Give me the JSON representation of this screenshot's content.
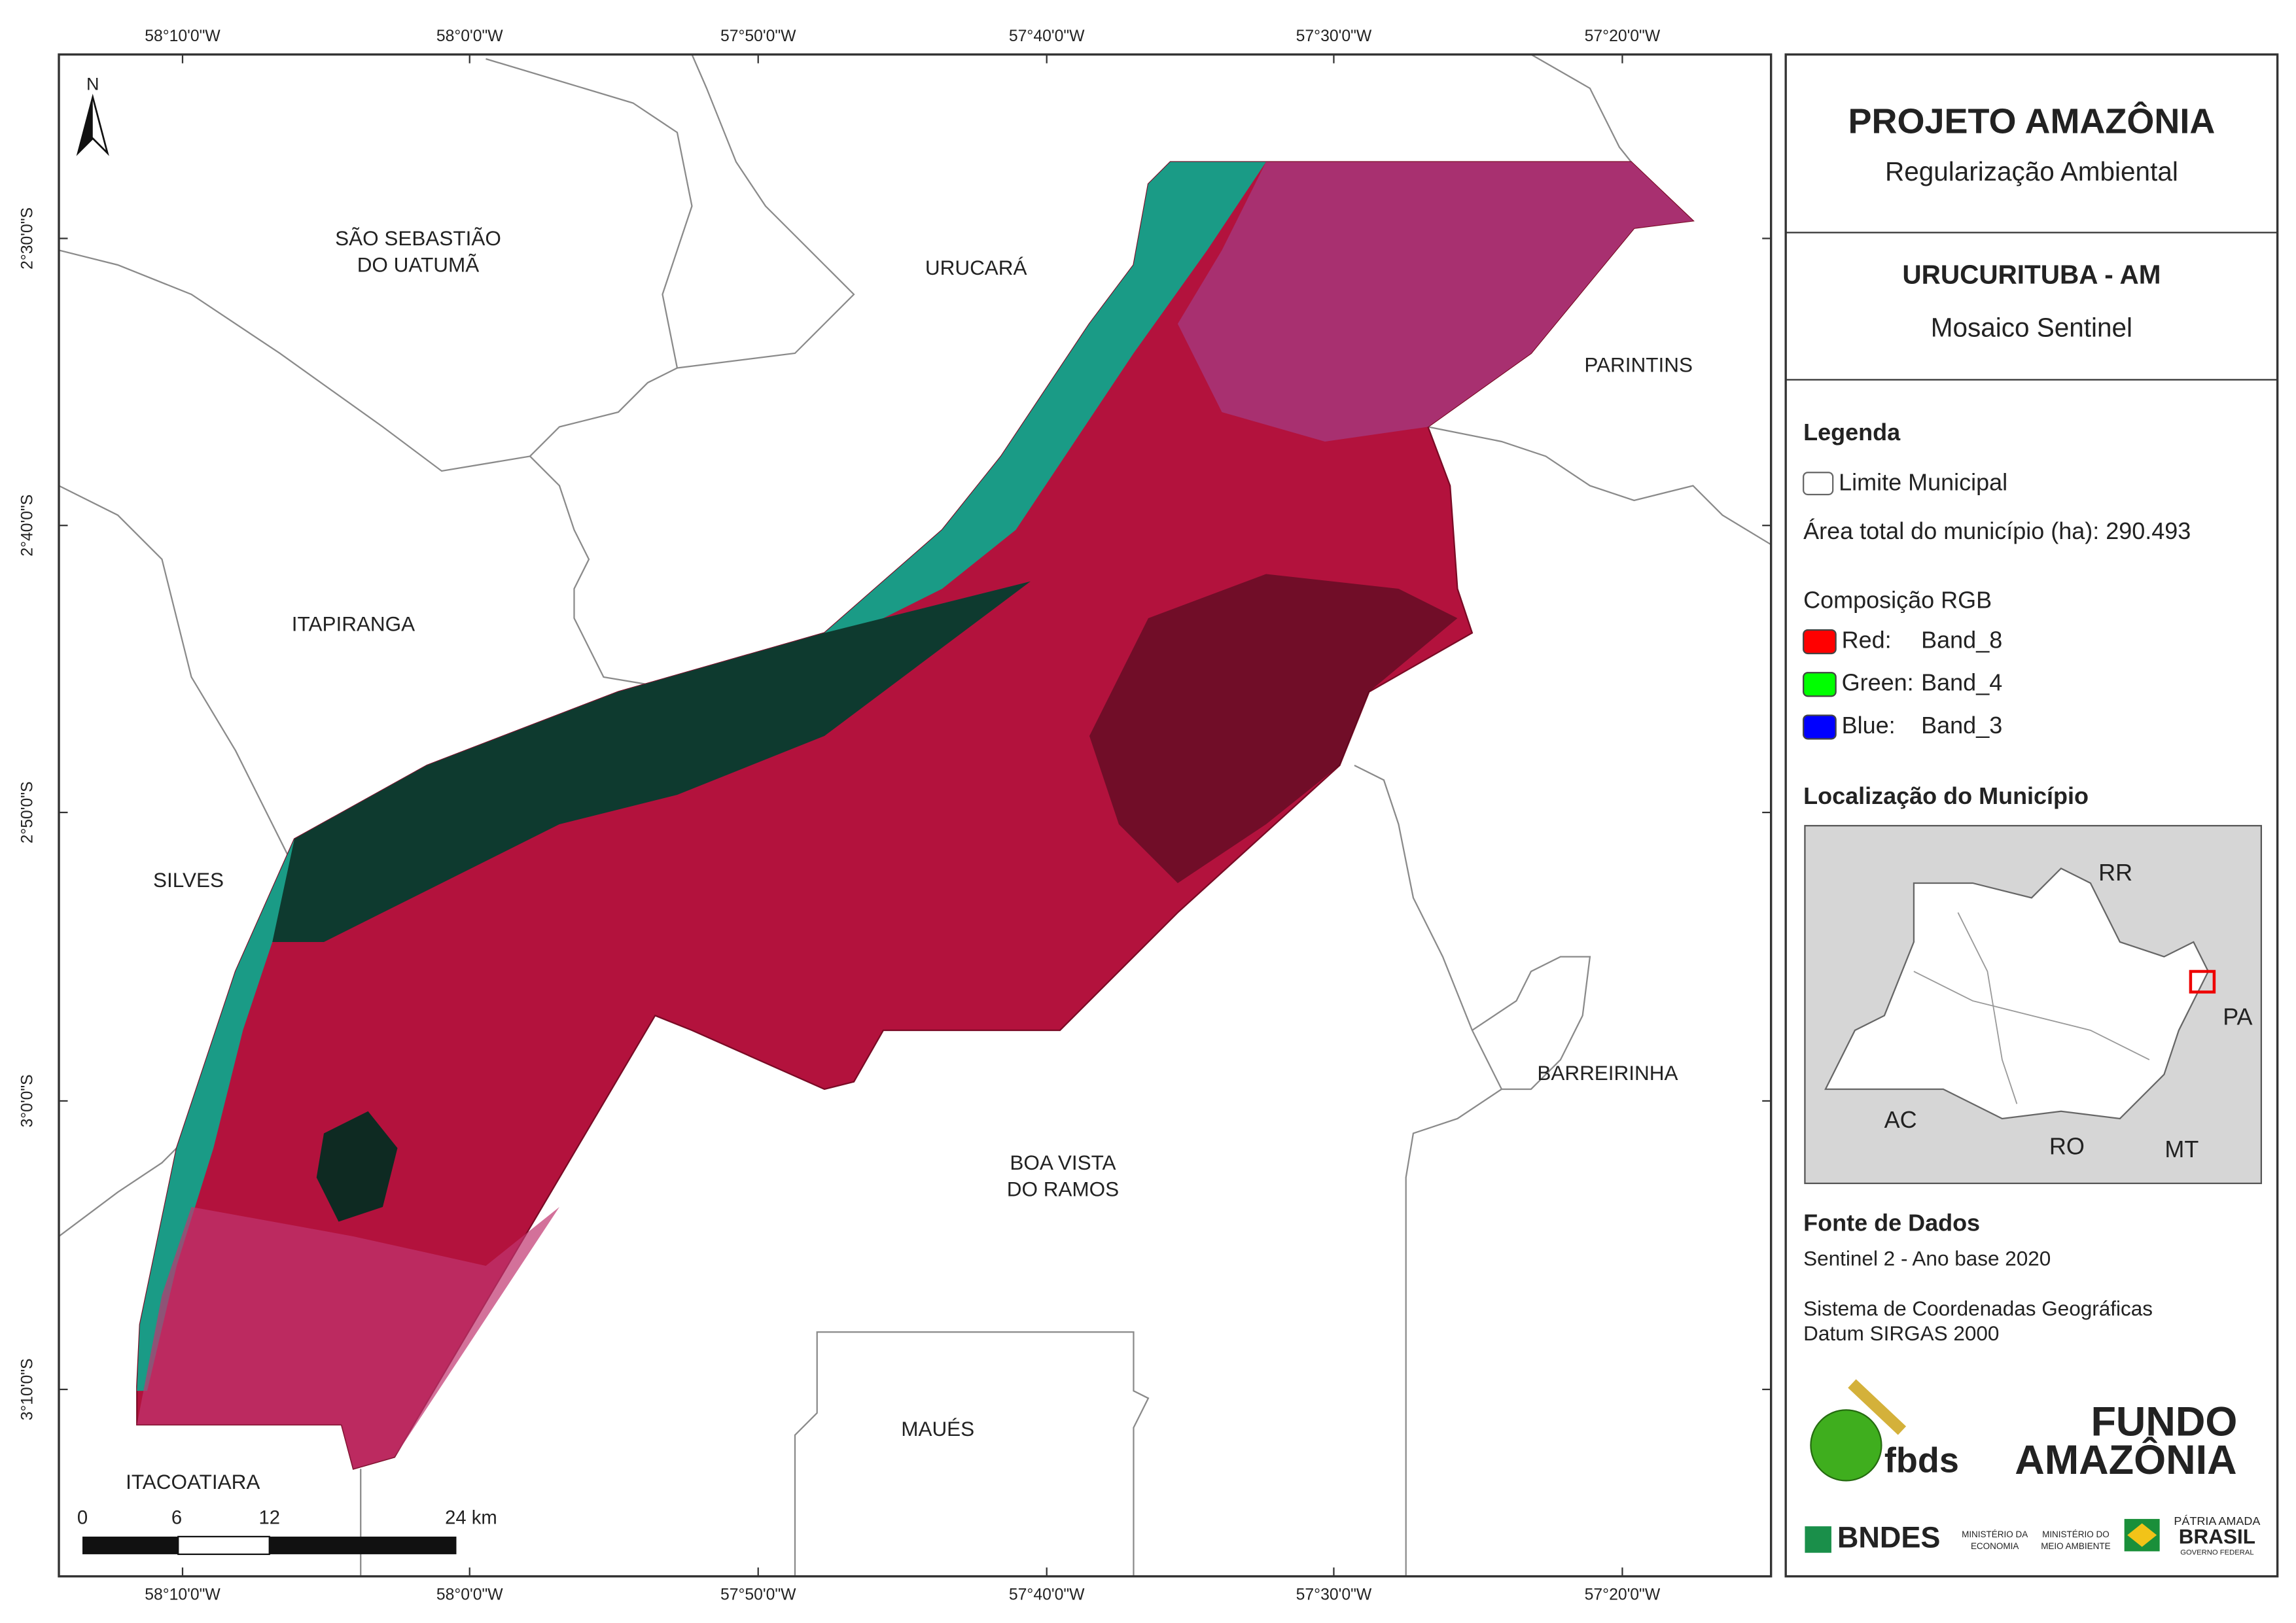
{
  "map": {
    "north": "N",
    "top_ticks": [
      "58°10'0\"W",
      "58°0'0\"W",
      "57°50'0\"W",
      "57°40'0\"W",
      "57°30'0\"W",
      "57°20'0\"W"
    ],
    "bottom_ticks": [
      "58°10'0\"W",
      "58°0'0\"W",
      "57°50'0\"W",
      "57°40'0\"W",
      "57°30'0\"W",
      "57°20'0\"W"
    ],
    "left_ticks": [
      "2°30'0\"S",
      "2°40'0\"S",
      "2°50'0\"S",
      "3°0'0\"S",
      "3°10'0\"S"
    ],
    "places": [
      [
        "SÃO SEBASTIÃO",
        "DO UATUMÃ"
      ],
      [
        "URUCARÁ"
      ],
      [
        "PARINTINS"
      ],
      [
        "ITAPIRANGA"
      ],
      [
        "SILVES"
      ],
      [
        "BARREIRINHA"
      ],
      [
        "BOA VISTA",
        "DO RAMOS"
      ],
      [
        "MAUÉS"
      ],
      [
        "ITACOATIARA"
      ]
    ],
    "scale_bar": [
      "0",
      "6",
      "12",
      "24 km"
    ]
  },
  "panel": {
    "title": "PROJETO AMAZÔNIA",
    "subtitle": "Regularização Ambiental",
    "municipality": "URUCURITUBA - AM",
    "product": "Mosaico Sentinel",
    "legend": {
      "title": "Legenda",
      "boundary": "Limite Municipal",
      "area": "Área total do município (ha): 290.493",
      "rgb_title": "Composição RGB",
      "bands": [
        {
          "channel": "Red:",
          "band": "Band_8",
          "color": "#ff0000"
        },
        {
          "channel": "Green:",
          "band": "Band_4",
          "color": "#00ff00"
        },
        {
          "channel": "Blue:",
          "band": "Band_3",
          "color": "#0000ff"
        }
      ]
    },
    "location": {
      "title": "Localização do Município",
      "states": [
        "RR",
        "PA",
        "AC",
        "RO",
        "MT"
      ]
    },
    "sources": {
      "title": "Fonte de Dados",
      "lines": [
        "Sentinel 2 - Ano base 2020",
        "Sistema de Coordenadas Geográficas",
        "Datum SIRGAS 2000"
      ]
    },
    "logos": {
      "fbds": "fbds",
      "fundo": [
        "FUNDO",
        "AMAZÔNIA"
      ],
      "bndes": "BNDES",
      "ministries": [
        "MINISTÉRIO DA",
        "ECONOMIA",
        "MINISTÉRIO DO",
        "MEIO AMBIENTE"
      ],
      "brasil": [
        "PÁTRIA AMADA",
        "BRASIL",
        "GOVERNO FEDERAL"
      ]
    }
  }
}
